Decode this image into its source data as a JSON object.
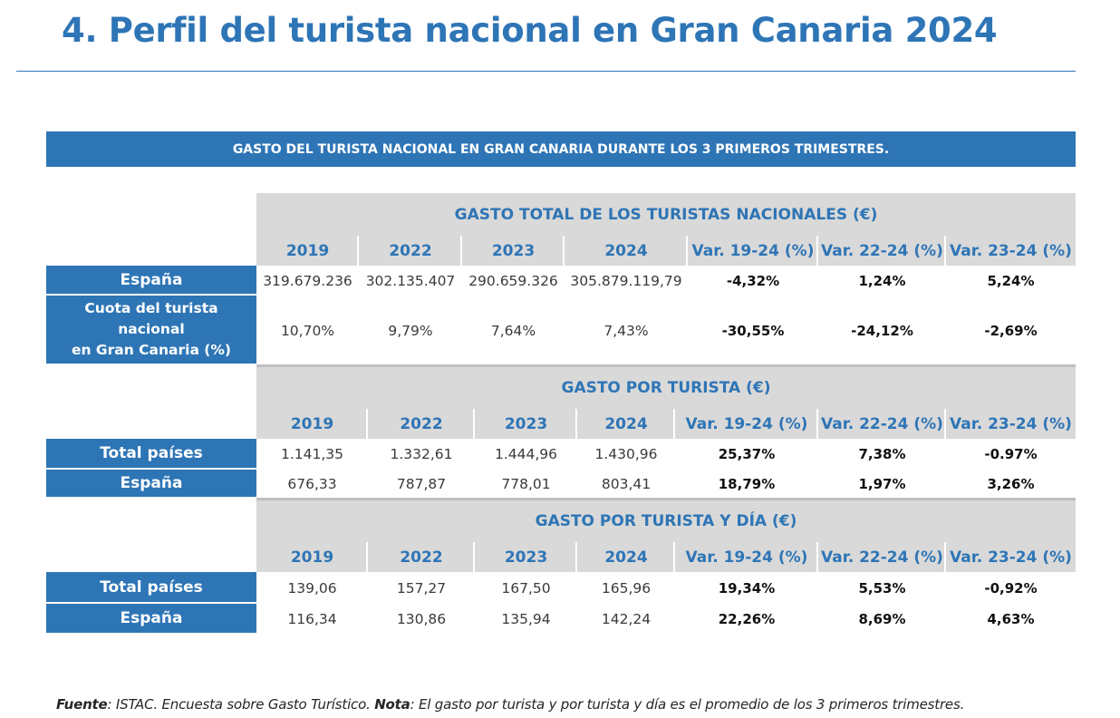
{
  "title": "4. Perfil del turista nacional en Gran Canaria 2024",
  "banner": "GASTO DEL TURISTA NACIONAL EN GRAN CANARIA DURANTE LOS 3 PRIMEROS TRIMESTRES.",
  "sections": [
    {
      "header": "GASTO TOTAL DE LOS TURISTAS NACIONALES (€)",
      "columns": [
        "2019",
        "2022",
        "2023",
        "2024",
        "Var. 19-24 (%)",
        "Var. 22-24 (%)",
        "Var. 23-24 (%)"
      ],
      "rows": [
        {
          "label": "España",
          "cells": [
            "319.679.236",
            "302.135.407",
            "290.659.326",
            "305.879.119,79",
            "-4,32%",
            "1,24%",
            "5,24%"
          ]
        },
        {
          "label_lines": [
            "Cuota del turista",
            "nacional",
            "en Gran Canaria (%)"
          ],
          "cells": [
            "10,70%",
            "9,79%",
            "7,64%",
            "7,43%",
            "-30,55%",
            "-24,12%",
            "-2,69%"
          ]
        }
      ]
    },
    {
      "header": "GASTO POR TURISTA (€)",
      "columns": [
        "2019",
        "2022",
        "2023",
        "2024",
        "Var. 19-24 (%)",
        "Var. 22-24 (%)",
        "Var. 23-24 (%)"
      ],
      "rows": [
        {
          "label": "Total países",
          "cells": [
            "1.141,35",
            "1.332,61",
            "1.444,96",
            "1.430,96",
            "25,37%",
            "7,38%",
            "-0.97%"
          ]
        },
        {
          "label": "España",
          "cells": [
            "676,33",
            "787,87",
            "778,01",
            "803,41",
            "18,79%",
            "1,97%",
            "3,26%"
          ]
        }
      ]
    },
    {
      "header": "GASTO POR TURISTA Y DÍA (€)",
      "columns": [
        "2019",
        "2022",
        "2023",
        "2024",
        "Var. 19-24 (%)",
        "Var. 22-24 (%)",
        "Var. 23-24 (%)"
      ],
      "rows": [
        {
          "label": "Total países",
          "cells": [
            "139,06",
            "157,27",
            "167,50",
            "165,96",
            "19,34%",
            "5,53%",
            "-0,92%"
          ]
        },
        {
          "label": "España",
          "cells": [
            "116,34",
            "130,86",
            "135,94",
            "142,24",
            "22,26%",
            "8,69%",
            "4,63%"
          ]
        }
      ]
    }
  ],
  "footer": {
    "source_label": "Fuente",
    "source_text": ": ISTAC. Encuesta sobre Gasto Turístico. ",
    "note_label": "Nota",
    "note_text": ": El gasto por turista y por turista y día es el promedio de los 3 primeros trimestres."
  }
}
